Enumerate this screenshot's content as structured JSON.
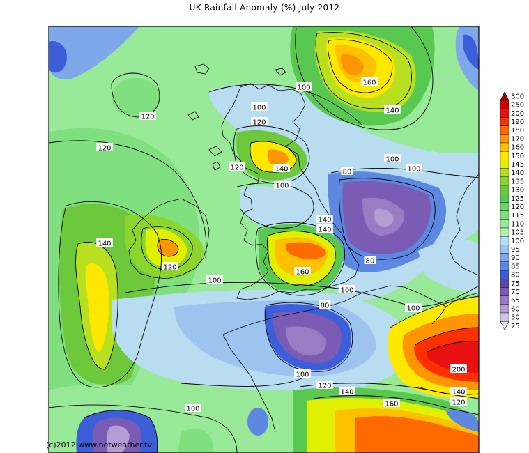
{
  "title": "UK Rainfall Anomaly (%) July 2012",
  "copyright": "(c)2012 www.netweather.tv",
  "legend": {
    "levels": [
      "300",
      "250",
      "200",
      "190",
      "180",
      "170",
      "160",
      "150",
      "145",
      "140",
      "135",
      "130",
      "125",
      "120",
      "115",
      "110",
      "105",
      "100",
      "95",
      "90",
      "85",
      "80",
      "75",
      "70",
      "65",
      "60",
      "50",
      "25"
    ],
    "colors": [
      "#a00000",
      "#c80000",
      "#e81010",
      "#ff3000",
      "#ff6a00",
      "#ff9500",
      "#ffc000",
      "#ffe800",
      "#e0f000",
      "#b8e020",
      "#8cd42e",
      "#6ec83c",
      "#58c850",
      "#6ad66a",
      "#80e080",
      "#98ea98",
      "#b0f2b0",
      "#b8dcf0",
      "#9cc4ee",
      "#7ea8ea",
      "#5c88e2",
      "#3c5ed8",
      "#5a4aa8",
      "#7a5cb4",
      "#9a7cc4",
      "#b49cd4",
      "#d2c4e4",
      "#ece6f4"
    ]
  },
  "contour_labels": [
    "120",
    "100",
    "160",
    "100",
    "140",
    "120",
    "120",
    "140",
    "120",
    "100",
    "80",
    "100",
    "140",
    "140",
    "120",
    "160",
    "140",
    "80",
    "100",
    "100",
    "100",
    "80",
    "100",
    "200",
    "140",
    "120",
    "160",
    "100",
    "140",
    "120",
    "100"
  ],
  "colors": {
    "ocean_green": "#98ea98",
    "coast": "#000000"
  }
}
